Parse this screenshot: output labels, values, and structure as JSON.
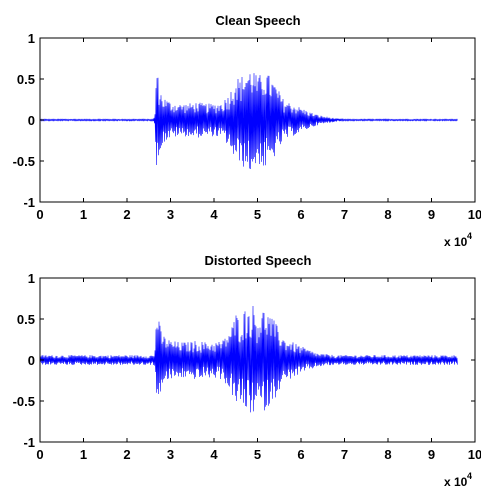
{
  "chart_data": [
    {
      "type": "line",
      "title": "Clean Speech",
      "xlabel": "",
      "ylabel": "",
      "xlim": [
        0,
        100000
      ],
      "ylim": [
        -1,
        1
      ],
      "x_tick_values": [
        0,
        10000,
        20000,
        30000,
        40000,
        50000,
        60000,
        70000,
        80000,
        90000,
        100000
      ],
      "x_tick_labels": [
        "0",
        "1",
        "2",
        "3",
        "4",
        "5",
        "6",
        "7",
        "8",
        "9",
        "10"
      ],
      "x_exponent_base": "x 10",
      "x_exponent_power": "4",
      "y_tick_values": [
        1,
        0.5,
        0,
        -0.5,
        -1
      ],
      "y_tick_labels": [
        "1",
        "0.5",
        "0",
        "-0.5",
        "-1"
      ],
      "grid": false,
      "line_color": "#0000ff",
      "series": [
        {
          "x_end": 96000,
          "envelope": [
            [
              0,
              0.01
            ],
            [
              26000,
              0.01
            ],
            [
              26400,
              0.05
            ],
            [
              26800,
              0.7
            ],
            [
              27200,
              0.5
            ],
            [
              28000,
              0.3
            ],
            [
              30000,
              0.22
            ],
            [
              32000,
              0.2
            ],
            [
              34000,
              0.2
            ],
            [
              36000,
              0.22
            ],
            [
              38000,
              0.2
            ],
            [
              40000,
              0.2
            ],
            [
              42000,
              0.22
            ],
            [
              43000,
              0.3
            ],
            [
              44000,
              0.38
            ],
            [
              45000,
              0.55
            ],
            [
              46000,
              0.5
            ],
            [
              47000,
              0.6
            ],
            [
              48000,
              0.62
            ],
            [
              49000,
              0.66
            ],
            [
              50000,
              0.5
            ],
            [
              51000,
              0.6
            ],
            [
              52000,
              0.6
            ],
            [
              53000,
              0.52
            ],
            [
              54000,
              0.45
            ],
            [
              55000,
              0.35
            ],
            [
              56000,
              0.25
            ],
            [
              58000,
              0.2
            ],
            [
              60000,
              0.15
            ],
            [
              62000,
              0.1
            ],
            [
              64000,
              0.06
            ],
            [
              66000,
              0.04
            ],
            [
              68000,
              0.02
            ],
            [
              70000,
              0.01
            ],
            [
              96000,
              0.01
            ]
          ]
        }
      ]
    },
    {
      "type": "line",
      "title": "Distorted Speech",
      "xlabel": "",
      "ylabel": "",
      "xlim": [
        0,
        100000
      ],
      "ylim": [
        -1,
        1
      ],
      "x_tick_values": [
        0,
        10000,
        20000,
        30000,
        40000,
        50000,
        60000,
        70000,
        80000,
        90000,
        100000
      ],
      "x_tick_labels": [
        "0",
        "1",
        "2",
        "3",
        "4",
        "5",
        "6",
        "7",
        "8",
        "9",
        "10"
      ],
      "x_exponent_base": "x 10",
      "x_exponent_power": "4",
      "y_tick_values": [
        1,
        0.5,
        0,
        -0.5,
        -1
      ],
      "y_tick_labels": [
        "1",
        "0.5",
        "0",
        "-0.5",
        "-1"
      ],
      "grid": false,
      "line_color": "#0000ff",
      "series": [
        {
          "x_end": 96000,
          "envelope": [
            [
              0,
              0.06
            ],
            [
              26000,
              0.06
            ],
            [
              26400,
              0.08
            ],
            [
              26800,
              0.72
            ],
            [
              27200,
              0.52
            ],
            [
              28000,
              0.32
            ],
            [
              30000,
              0.24
            ],
            [
              32000,
              0.22
            ],
            [
              34000,
              0.22
            ],
            [
              36000,
              0.24
            ],
            [
              38000,
              0.22
            ],
            [
              40000,
              0.22
            ],
            [
              42000,
              0.24
            ],
            [
              43000,
              0.32
            ],
            [
              44000,
              0.4
            ],
            [
              45000,
              0.57
            ],
            [
              46000,
              0.52
            ],
            [
              47000,
              0.62
            ],
            [
              48000,
              0.64
            ],
            [
              49000,
              0.68
            ],
            [
              50000,
              0.52
            ],
            [
              51000,
              0.62
            ],
            [
              52000,
              0.62
            ],
            [
              53000,
              0.54
            ],
            [
              54000,
              0.47
            ],
            [
              55000,
              0.37
            ],
            [
              56000,
              0.27
            ],
            [
              58000,
              0.22
            ],
            [
              60000,
              0.17
            ],
            [
              62000,
              0.12
            ],
            [
              64000,
              0.08
            ],
            [
              66000,
              0.07
            ],
            [
              68000,
              0.06
            ],
            [
              70000,
              0.06
            ],
            [
              96000,
              0.06
            ]
          ]
        }
      ]
    }
  ]
}
